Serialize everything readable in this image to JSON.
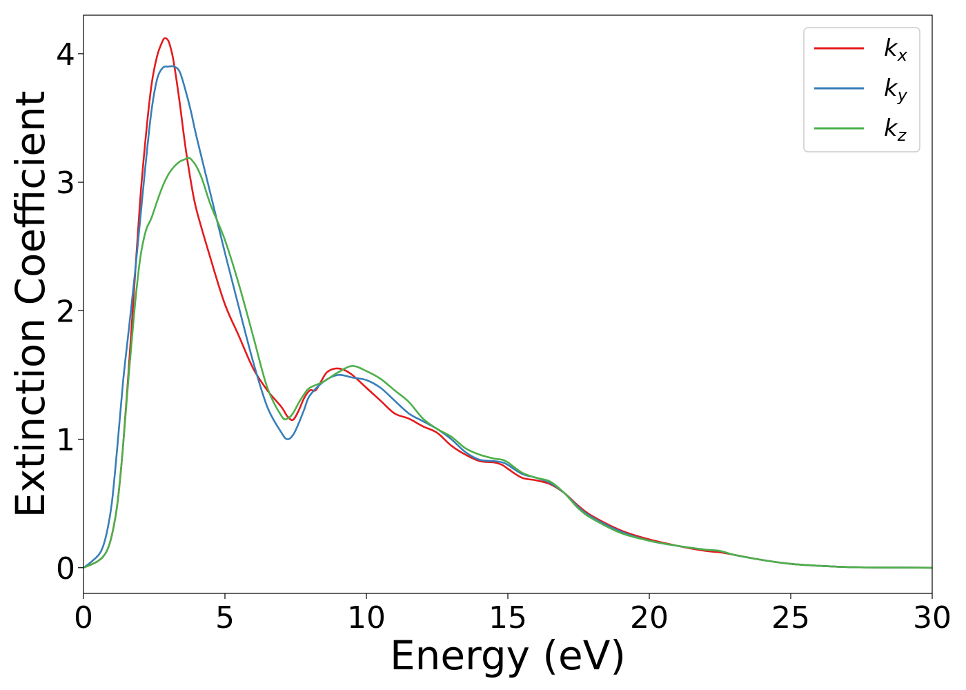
{
  "chart_data": {
    "type": "line",
    "title": "",
    "xlabel": "Energy (eV)",
    "ylabel": "Extinction Coefficient",
    "xlim": [
      0,
      30
    ],
    "ylim": [
      -0.2,
      4.3
    ],
    "xticks": [
      0,
      5,
      10,
      15,
      20,
      25,
      30
    ],
    "yticks": [
      0,
      1,
      2,
      3,
      4
    ],
    "grid": false,
    "legend_position": "top-right",
    "series": [
      {
        "name": "k",
        "subscript": "x",
        "color": "#e41a1c",
        "x": [
          0,
          0.5,
          0.8,
          1.0,
          1.2,
          1.4,
          1.6,
          1.8,
          2.0,
          2.2,
          2.4,
          2.6,
          2.8,
          2.9,
          3.0,
          3.1,
          3.2,
          3.4,
          3.6,
          3.8,
          4.0,
          4.5,
          5.0,
          5.5,
          6.0,
          6.5,
          7.0,
          7.2,
          7.4,
          7.6,
          7.8,
          8.0,
          8.2,
          8.4,
          8.6,
          8.9,
          9.2,
          9.5,
          10.0,
          10.5,
          11.0,
          11.5,
          12.0,
          12.5,
          13.0,
          13.5,
          14.0,
          14.5,
          14.8,
          15.0,
          15.5,
          16.0,
          16.5,
          17.0,
          17.5,
          18.0,
          19.0,
          20.0,
          21.0,
          22.0,
          22.5,
          23.0,
          24.0,
          25.0,
          26.0,
          27.0,
          28.0,
          30.0
        ],
        "y": [
          0,
          0.05,
          0.12,
          0.25,
          0.5,
          0.95,
          1.55,
          2.2,
          2.85,
          3.35,
          3.75,
          3.98,
          4.1,
          4.12,
          4.1,
          4.03,
          3.92,
          3.62,
          3.28,
          3.0,
          2.78,
          2.4,
          2.05,
          1.8,
          1.55,
          1.38,
          1.25,
          1.18,
          1.15,
          1.22,
          1.32,
          1.38,
          1.38,
          1.45,
          1.52,
          1.55,
          1.54,
          1.5,
          1.4,
          1.3,
          1.2,
          1.16,
          1.1,
          1.05,
          0.95,
          0.88,
          0.83,
          0.82,
          0.8,
          0.77,
          0.7,
          0.68,
          0.65,
          0.58,
          0.48,
          0.4,
          0.29,
          0.22,
          0.17,
          0.13,
          0.12,
          0.1,
          0.06,
          0.03,
          0.015,
          0.005,
          0.002,
          0
        ]
      },
      {
        "name": "k",
        "subscript": "y",
        "color": "#377eb8",
        "x": [
          0,
          0.3,
          0.6,
          0.8,
          1.0,
          1.2,
          1.4,
          1.6,
          1.8,
          2.0,
          2.2,
          2.4,
          2.6,
          2.8,
          3.0,
          3.2,
          3.4,
          3.6,
          3.8,
          4.0,
          4.5,
          5.0,
          5.5,
          6.0,
          6.5,
          7.0,
          7.2,
          7.4,
          7.6,
          7.8,
          8.0,
          8.5,
          9.0,
          9.5,
          10.0,
          10.5,
          11.0,
          11.5,
          12.0,
          12.5,
          13.0,
          13.5,
          14.0,
          14.5,
          14.8,
          15.0,
          15.5,
          16.0,
          16.5,
          17.0,
          17.5,
          18.0,
          19.0,
          20.0,
          21.0,
          22.0,
          22.5,
          23.0,
          24.0,
          25.0,
          26.0,
          27.0,
          28.0,
          30.0
        ],
        "y": [
          0,
          0.05,
          0.12,
          0.25,
          0.5,
          0.95,
          1.45,
          1.85,
          2.25,
          2.7,
          3.15,
          3.55,
          3.8,
          3.89,
          3.9,
          3.9,
          3.86,
          3.72,
          3.55,
          3.35,
          2.9,
          2.45,
          2.02,
          1.6,
          1.25,
          1.05,
          1.0,
          1.03,
          1.12,
          1.23,
          1.34,
          1.45,
          1.5,
          1.48,
          1.46,
          1.4,
          1.3,
          1.2,
          1.14,
          1.08,
          1.0,
          0.9,
          0.84,
          0.83,
          0.82,
          0.8,
          0.73,
          0.7,
          0.66,
          0.58,
          0.47,
          0.39,
          0.28,
          0.21,
          0.17,
          0.14,
          0.13,
          0.1,
          0.06,
          0.03,
          0.015,
          0.005,
          0.002,
          0
        ]
      },
      {
        "name": "k",
        "subscript": "z",
        "color": "#4daf4a",
        "x": [
          0,
          0.5,
          0.8,
          1.0,
          1.2,
          1.4,
          1.6,
          1.8,
          2.0,
          2.2,
          2.4,
          2.6,
          2.8,
          3.0,
          3.2,
          3.4,
          3.6,
          3.7,
          3.8,
          4.0,
          4.2,
          4.5,
          5.0,
          5.5,
          6.0,
          6.5,
          7.0,
          7.2,
          7.4,
          7.6,
          7.8,
          8.0,
          8.5,
          9.0,
          9.5,
          10.0,
          10.5,
          11.0,
          11.5,
          12.0,
          12.5,
          13.0,
          13.5,
          14.0,
          14.5,
          14.8,
          15.0,
          15.5,
          16.0,
          16.5,
          17.0,
          17.5,
          18.0,
          19.0,
          20.0,
          21.0,
          22.0,
          22.5,
          23.0,
          24.0,
          25.0,
          26.0,
          27.0,
          28.0,
          30.0
        ],
        "y": [
          0,
          0.05,
          0.12,
          0.25,
          0.5,
          0.95,
          1.5,
          2.0,
          2.4,
          2.62,
          2.72,
          2.85,
          2.97,
          3.06,
          3.12,
          3.16,
          3.18,
          3.19,
          3.18,
          3.12,
          3.02,
          2.82,
          2.55,
          2.2,
          1.8,
          1.4,
          1.18,
          1.16,
          1.2,
          1.28,
          1.35,
          1.4,
          1.45,
          1.52,
          1.57,
          1.53,
          1.47,
          1.38,
          1.29,
          1.16,
          1.08,
          1.02,
          0.93,
          0.88,
          0.85,
          0.84,
          0.82,
          0.74,
          0.7,
          0.67,
          0.58,
          0.46,
          0.38,
          0.27,
          0.21,
          0.17,
          0.14,
          0.13,
          0.1,
          0.06,
          0.03,
          0.015,
          0.005,
          0.002,
          0
        ]
      }
    ]
  }
}
